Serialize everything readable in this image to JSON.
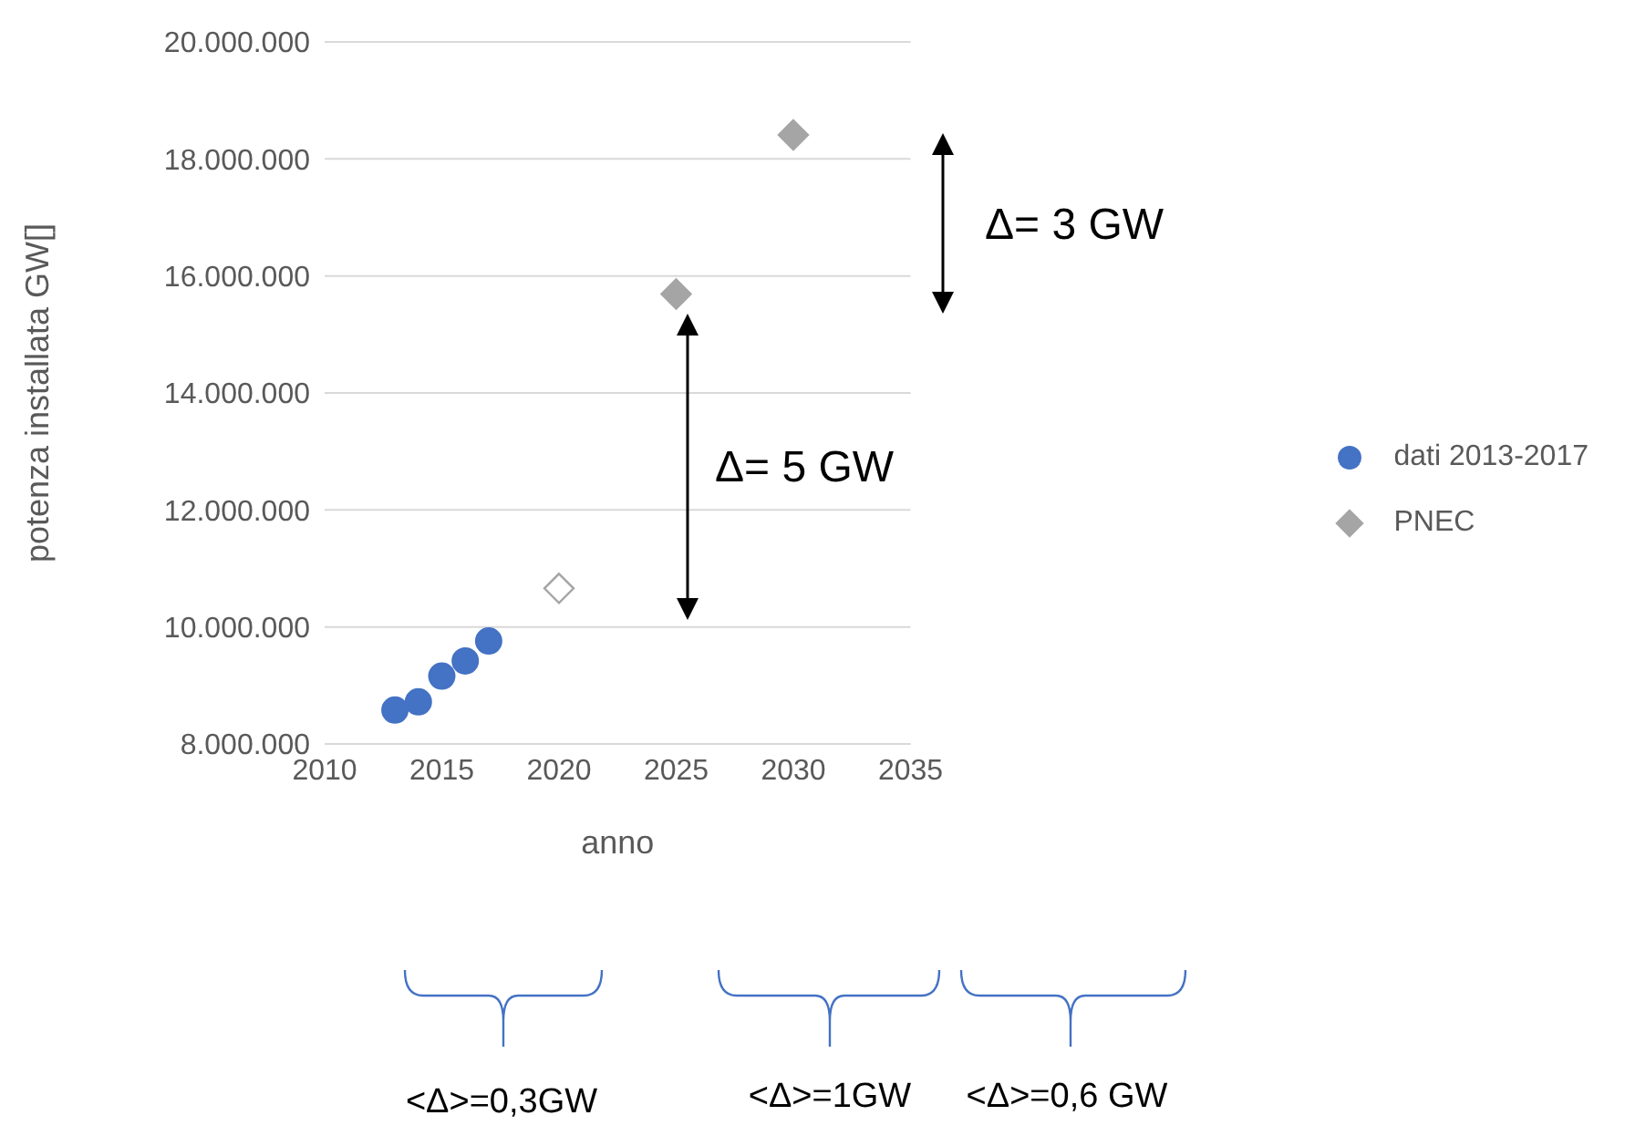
{
  "chart_data": {
    "type": "scatter",
    "xlabel": "anno",
    "ylabel": "potenza installata GW[]",
    "xlim": [
      2010,
      2035
    ],
    "xticks": [
      2010,
      2015,
      2020,
      2025,
      2030,
      2035
    ],
    "ylim": [
      8000000,
      20000000
    ],
    "yticks": [
      {
        "value": 8000000,
        "label": "8.000.000"
      },
      {
        "value": 10000000,
        "label": "10.000.000"
      },
      {
        "value": 12000000,
        "label": "12.000.000"
      },
      {
        "value": 14000000,
        "label": "14.000.000"
      },
      {
        "value": 16000000,
        "label": "16.000.000"
      },
      {
        "value": 18000000,
        "label": "18.000.000"
      },
      {
        "value": 20000000,
        "label": "20.000.000"
      }
    ],
    "grid": "y",
    "legend": "right",
    "series": [
      {
        "name": "dati 2013-2017",
        "color": "#4472c4",
        "marker": "circle",
        "x": [
          2013,
          2014,
          2015,
          2016,
          2017
        ],
        "values": [
          8580000,
          8720000,
          9160000,
          9420000,
          9760000
        ]
      },
      {
        "name": "PNEC",
        "color": "#a5a5a5",
        "marker": "diamond",
        "colors": [
          "#ffffff",
          "#a5a5a5",
          "#a5a5a5"
        ],
        "x": [
          2020,
          2025,
          2030
        ],
        "values": [
          10660000,
          15690000,
          18410000
        ]
      }
    ],
    "annotations": [
      "Δ= 5 GW",
      "Δ= 3 GW",
      "<Δ>=0,3GW",
      "<Δ>=1GW",
      "<Δ>=0,6 GW"
    ]
  }
}
